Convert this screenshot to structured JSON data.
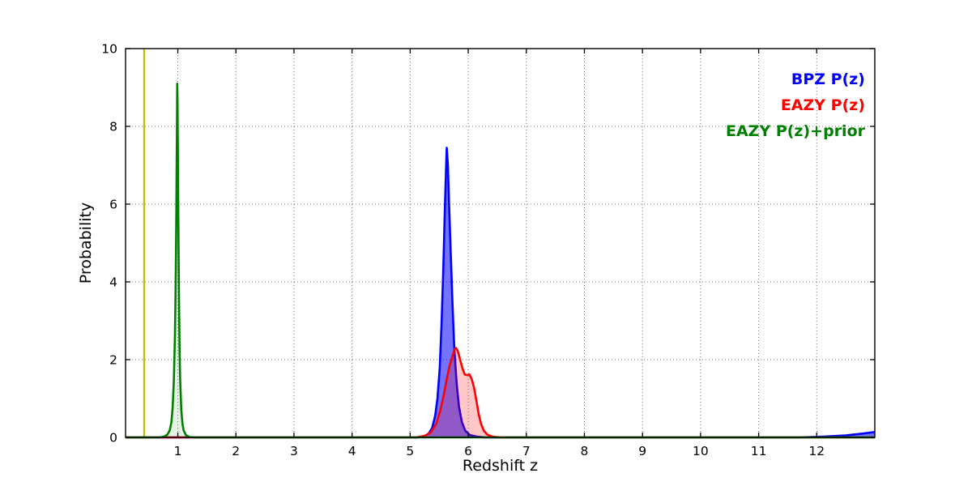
{
  "chart_data": {
    "type": "line",
    "title": "",
    "xlabel": "Redshift z",
    "ylabel": "Probability",
    "xlim": [
      0.1,
      13.0
    ],
    "ylim": [
      0,
      10
    ],
    "xticks": [
      1,
      2,
      3,
      4,
      5,
      6,
      7,
      8,
      9,
      10,
      11,
      12
    ],
    "yticks": [
      0,
      2,
      4,
      6,
      8,
      10
    ],
    "grid": "dotted",
    "legend_position": "top-right-inside",
    "legend": [
      {
        "label": "BPZ P(z)",
        "color": "#0000ff"
      },
      {
        "label": "EAZY P(z)",
        "color": "#ff0000"
      },
      {
        "label": "EAZY P(z)+prior",
        "color": "#008000"
      }
    ],
    "vline": {
      "x": 0.42,
      "color": "#bfbf00",
      "ymin": 0,
      "ymax": 10
    },
    "series": [
      {
        "name": "BPZ P(z)",
        "slug": "bpz-curve",
        "color": "#0000ff",
        "fill": "rgba(0,0,255,0.55)",
        "points": [
          [
            0.1,
            0
          ],
          [
            5.15,
            0
          ],
          [
            5.25,
            0.03
          ],
          [
            5.32,
            0.1
          ],
          [
            5.38,
            0.25
          ],
          [
            5.43,
            0.55
          ],
          [
            5.47,
            1.0
          ],
          [
            5.51,
            1.8
          ],
          [
            5.54,
            2.9
          ],
          [
            5.57,
            4.3
          ],
          [
            5.6,
            6.0
          ],
          [
            5.62,
            7.0
          ],
          [
            5.63,
            7.45
          ],
          [
            5.65,
            7.0
          ],
          [
            5.67,
            6.0
          ],
          [
            5.7,
            4.7
          ],
          [
            5.73,
            3.4
          ],
          [
            5.76,
            2.3
          ],
          [
            5.8,
            1.4
          ],
          [
            5.84,
            0.8
          ],
          [
            5.89,
            0.4
          ],
          [
            5.95,
            0.17
          ],
          [
            6.03,
            0.06
          ],
          [
            6.15,
            0.02
          ],
          [
            6.3,
            0
          ],
          [
            11.7,
            0
          ],
          [
            12.1,
            0.02
          ],
          [
            12.5,
            0.05
          ],
          [
            12.8,
            0.1
          ],
          [
            13.0,
            0.14
          ]
        ]
      },
      {
        "name": "EAZY P(z)",
        "slug": "eazy-curve",
        "color": "#ff0000",
        "fill": "rgba(255,0,0,0.22)",
        "points": [
          [
            0.1,
            0
          ],
          [
            5.1,
            0
          ],
          [
            5.25,
            0.04
          ],
          [
            5.35,
            0.12
          ],
          [
            5.45,
            0.35
          ],
          [
            5.52,
            0.7
          ],
          [
            5.58,
            1.1
          ],
          [
            5.63,
            1.5
          ],
          [
            5.68,
            1.85
          ],
          [
            5.72,
            2.05
          ],
          [
            5.76,
            2.25
          ],
          [
            5.79,
            2.3
          ],
          [
            5.82,
            2.22
          ],
          [
            5.86,
            2.0
          ],
          [
            5.9,
            1.78
          ],
          [
            5.94,
            1.62
          ],
          [
            5.98,
            1.6
          ],
          [
            6.02,
            1.62
          ],
          [
            6.06,
            1.5
          ],
          [
            6.1,
            1.28
          ],
          [
            6.14,
            0.95
          ],
          [
            6.18,
            0.6
          ],
          [
            6.22,
            0.35
          ],
          [
            6.27,
            0.17
          ],
          [
            6.33,
            0.07
          ],
          [
            6.42,
            0.02
          ],
          [
            6.55,
            0
          ],
          [
            13.0,
            0
          ]
        ]
      },
      {
        "name": "EAZY P(z)+prior",
        "slug": "eazy-prior-curve",
        "color": "#008000",
        "fill": "rgba(0,128,0,0.10)",
        "points": [
          [
            0.1,
            0
          ],
          [
            0.68,
            0
          ],
          [
            0.76,
            0.02
          ],
          [
            0.82,
            0.07
          ],
          [
            0.86,
            0.18
          ],
          [
            0.89,
            0.4
          ],
          [
            0.91,
            0.75
          ],
          [
            0.93,
            1.4
          ],
          [
            0.95,
            2.6
          ],
          [
            0.96,
            3.6
          ],
          [
            0.97,
            5.0
          ],
          [
            0.975,
            5.9
          ],
          [
            0.98,
            7.0
          ],
          [
            0.985,
            8.0
          ],
          [
            0.99,
            9.1
          ],
          [
            0.995,
            8.6
          ],
          [
            1.0,
            7.6
          ],
          [
            1.005,
            6.5
          ],
          [
            1.01,
            5.4
          ],
          [
            1.02,
            3.6
          ],
          [
            1.03,
            2.3
          ],
          [
            1.04,
            1.5
          ],
          [
            1.06,
            0.7
          ],
          [
            1.08,
            0.35
          ],
          [
            1.1,
            0.18
          ],
          [
            1.14,
            0.06
          ],
          [
            1.2,
            0.01
          ],
          [
            1.3,
            0
          ],
          [
            13.0,
            0
          ]
        ]
      }
    ]
  }
}
